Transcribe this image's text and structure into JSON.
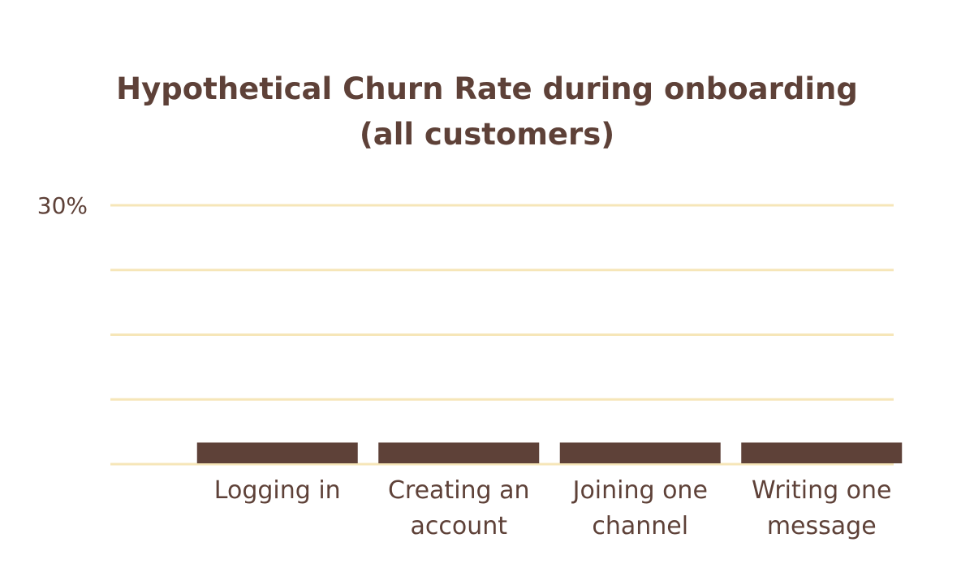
{
  "colors": {
    "text": "#5E4138",
    "bar": "#5E4138",
    "grid": "#F6E6B8",
    "background": "#FFFFFF"
  },
  "chart_data": {
    "type": "bar",
    "title_lines": [
      "Hypothetical Churn Rate during onboarding",
      "(all customers)"
    ],
    "title": "Hypothetical Churn Rate during onboarding (all customers)",
    "xlabel": "",
    "ylabel": "",
    "categories": [
      [
        "Logging in"
      ],
      [
        "Creating an",
        "account"
      ],
      [
        "Joining one",
        "channel"
      ],
      [
        "Writing one",
        "message"
      ]
    ],
    "values": [
      2.5,
      2.5,
      2.5,
      2.5
    ],
    "ylim": [
      0,
      30
    ],
    "gridlines": [
      0,
      7.5,
      15,
      22.5,
      30
    ],
    "y_tick_labels": [
      {
        "value": 30,
        "label": "30%"
      }
    ],
    "grid": true,
    "legend": "none"
  }
}
